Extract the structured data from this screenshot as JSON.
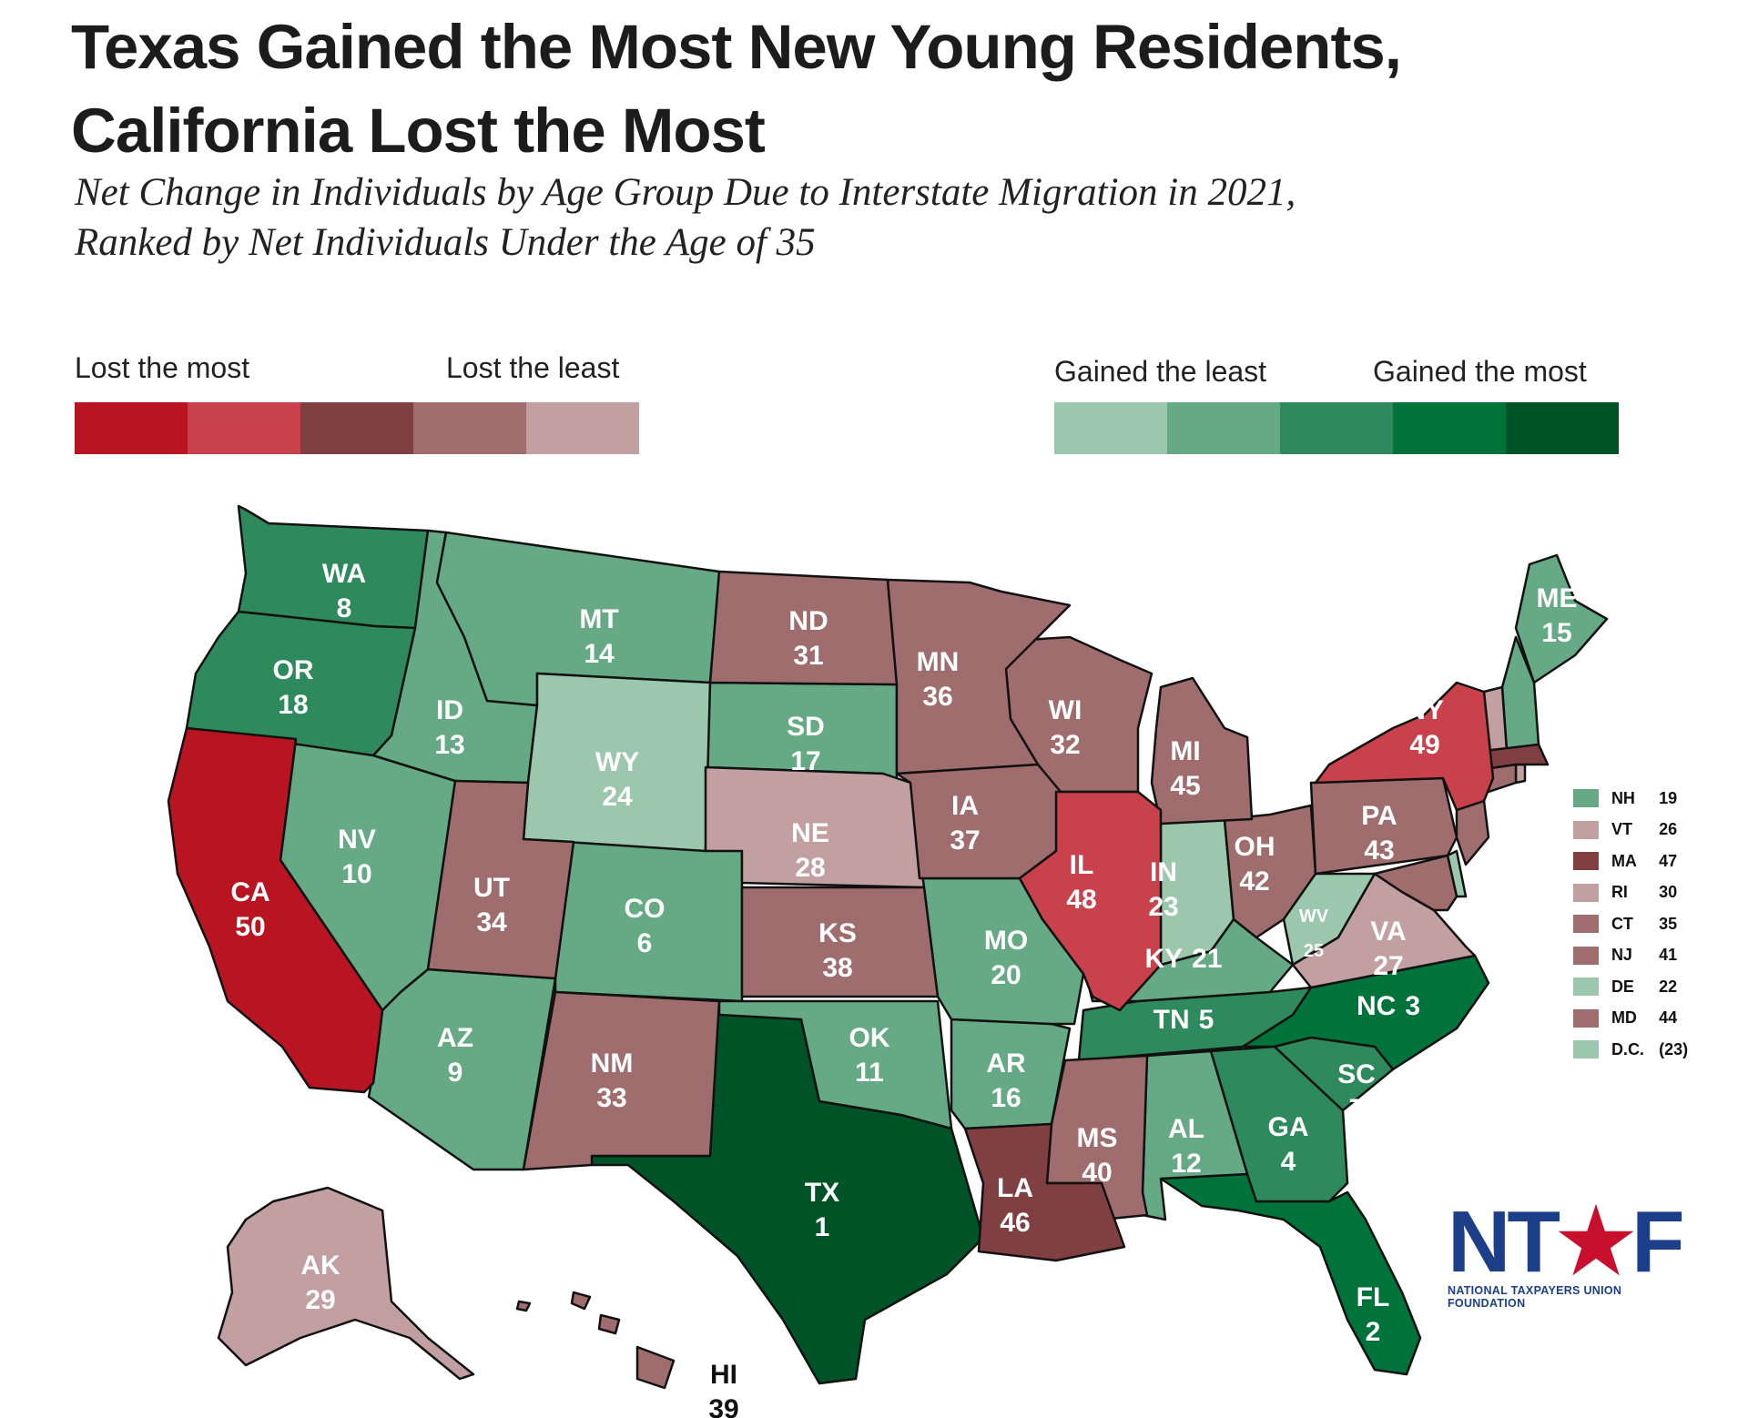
{
  "title": {
    "line1": "Texas Gained the Most New Young Residents,",
    "line2": "California Lost the Most"
  },
  "subtitle": {
    "line1": "Net Change in Individuals by Age Group Due to Interstate Migration in 2021,",
    "line2": "Ranked by Net Individuals Under the Age of 35"
  },
  "legend": {
    "lost_most": "Lost the most",
    "lost_least": "Lost the least",
    "gained_least": "Gained the least",
    "gained_most": "Gained the most",
    "loss_colors": [
      "#b81422",
      "#c8414b",
      "#803f41",
      "#a06d6f",
      "#c29fa0"
    ],
    "gain_colors": [
      "#9bc7ad",
      "#66a985",
      "#2e8a5c",
      "#00733a",
      "#005327"
    ]
  },
  "states": [
    {
      "abbr": "TX",
      "rank": "1",
      "color": "#005327"
    },
    {
      "abbr": "FL",
      "rank": "2",
      "color": "#00733a"
    },
    {
      "abbr": "NC",
      "rank": "3",
      "color": "#00733a"
    },
    {
      "abbr": "GA",
      "rank": "4",
      "color": "#2e8a5c"
    },
    {
      "abbr": "TN",
      "rank": "5",
      "color": "#2e8a5c"
    },
    {
      "abbr": "CO",
      "rank": "6",
      "color": "#66a985"
    },
    {
      "abbr": "SC",
      "rank": "7",
      "color": "#2e8a5c"
    },
    {
      "abbr": "WA",
      "rank": "8",
      "color": "#2e8a5c"
    },
    {
      "abbr": "AZ",
      "rank": "9",
      "color": "#66a985"
    },
    {
      "abbr": "NV",
      "rank": "10",
      "color": "#66a985"
    },
    {
      "abbr": "OK",
      "rank": "11",
      "color": "#66a985"
    },
    {
      "abbr": "AL",
      "rank": "12",
      "color": "#66a985"
    },
    {
      "abbr": "ID",
      "rank": "13",
      "color": "#66a985"
    },
    {
      "abbr": "MT",
      "rank": "14",
      "color": "#66a985"
    },
    {
      "abbr": "ME",
      "rank": "15",
      "color": "#66a985"
    },
    {
      "abbr": "AR",
      "rank": "16",
      "color": "#66a985"
    },
    {
      "abbr": "SD",
      "rank": "17",
      "color": "#66a985"
    },
    {
      "abbr": "OR",
      "rank": "18",
      "color": "#2e8a5c"
    },
    {
      "abbr": "NH",
      "rank": "19",
      "color": "#66a985"
    },
    {
      "abbr": "MO",
      "rank": "20",
      "color": "#66a985"
    },
    {
      "abbr": "KY",
      "rank": "21",
      "color": "#66a985"
    },
    {
      "abbr": "DE",
      "rank": "22",
      "color": "#9bc7ad"
    },
    {
      "abbr": "IN",
      "rank": "23",
      "color": "#9bc7ad"
    },
    {
      "abbr": "WY",
      "rank": "24",
      "color": "#9bc7ad"
    },
    {
      "abbr": "WV",
      "rank": "25",
      "color": "#9bc7ad"
    },
    {
      "abbr": "VT",
      "rank": "26",
      "color": "#c29fa0"
    },
    {
      "abbr": "VA",
      "rank": "27",
      "color": "#c29fa0"
    },
    {
      "abbr": "NE",
      "rank": "28",
      "color": "#c29fa0"
    },
    {
      "abbr": "AK",
      "rank": "29",
      "color": "#c29fa0"
    },
    {
      "abbr": "RI",
      "rank": "30",
      "color": "#c29fa0"
    },
    {
      "abbr": "ND",
      "rank": "31",
      "color": "#a06d6f"
    },
    {
      "abbr": "WI",
      "rank": "32",
      "color": "#a06d6f"
    },
    {
      "abbr": "NM",
      "rank": "33",
      "color": "#a06d6f"
    },
    {
      "abbr": "UT",
      "rank": "34",
      "color": "#a06d6f"
    },
    {
      "abbr": "CT",
      "rank": "35",
      "color": "#a06d6f"
    },
    {
      "abbr": "MN",
      "rank": "36",
      "color": "#a06d6f"
    },
    {
      "abbr": "IA",
      "rank": "37",
      "color": "#a06d6f"
    },
    {
      "abbr": "KS",
      "rank": "38",
      "color": "#a06d6f"
    },
    {
      "abbr": "HI",
      "rank": "39",
      "color": "#a06d6f"
    },
    {
      "abbr": "MS",
      "rank": "40",
      "color": "#a06d6f"
    },
    {
      "abbr": "NJ",
      "rank": "41",
      "color": "#a06d6f"
    },
    {
      "abbr": "OH",
      "rank": "42",
      "color": "#a06d6f"
    },
    {
      "abbr": "PA",
      "rank": "43",
      "color": "#a06d6f"
    },
    {
      "abbr": "MD",
      "rank": "44",
      "color": "#a06d6f"
    },
    {
      "abbr": "MI",
      "rank": "45",
      "color": "#a06d6f"
    },
    {
      "abbr": "LA",
      "rank": "46",
      "color": "#803f41"
    },
    {
      "abbr": "MA",
      "rank": "47",
      "color": "#803f41"
    },
    {
      "abbr": "IL",
      "rank": "48",
      "color": "#c8414b"
    },
    {
      "abbr": "NY",
      "rank": "49",
      "color": "#c8414b"
    },
    {
      "abbr": "CA",
      "rank": "50",
      "color": "#b81422"
    }
  ],
  "small_states_key": [
    {
      "abbr": "NH",
      "rank": "19",
      "color": "#66a985"
    },
    {
      "abbr": "VT",
      "rank": "26",
      "color": "#c29fa0"
    },
    {
      "abbr": "MA",
      "rank": "47",
      "color": "#803f41"
    },
    {
      "abbr": "RI",
      "rank": "30",
      "color": "#c29fa0"
    },
    {
      "abbr": "CT",
      "rank": "35",
      "color": "#a06d6f"
    },
    {
      "abbr": "NJ",
      "rank": "41",
      "color": "#a06d6f"
    },
    {
      "abbr": "DE",
      "rank": "22",
      "color": "#9bc7ad"
    },
    {
      "abbr": "MD",
      "rank": "44",
      "color": "#a06d6f"
    },
    {
      "abbr": "D.C.",
      "rank": "(23)",
      "color": "#9bc7ad"
    }
  ],
  "logo": {
    "mark_left": "NT",
    "mark_star": "★",
    "mark_right": "F",
    "org_name": "NATIONAL TAXPAYERS UNION FOUNDATION"
  }
}
